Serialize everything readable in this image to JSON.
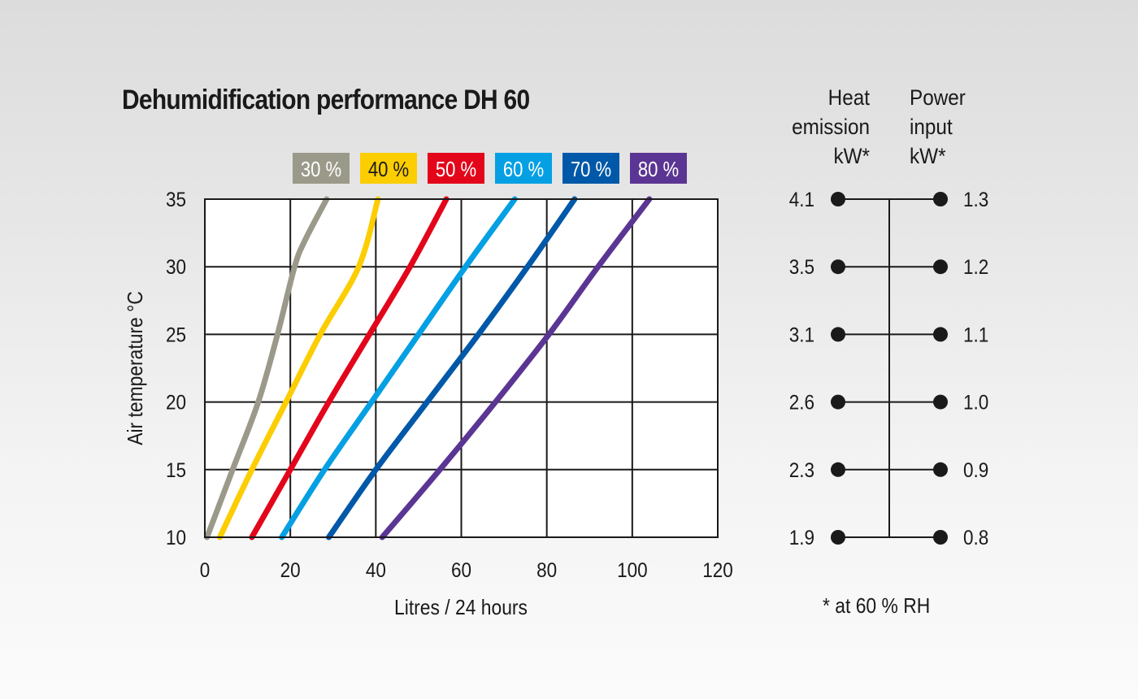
{
  "title": "Dehumidification performance DH 60",
  "chart_data": {
    "type": "line",
    "title": "Dehumidification performance DH 60",
    "xlabel": "Litres / 24 hours",
    "ylabel": "Air temperature °C",
    "xlim": [
      0,
      120
    ],
    "ylim": [
      10,
      35
    ],
    "xticks": [
      "0",
      "20",
      "40",
      "60",
      "80",
      "100",
      "120"
    ],
    "yticks": [
      "10",
      "15",
      "20",
      "25",
      "30",
      "35"
    ],
    "grid": true,
    "legend_position": "top",
    "series": [
      {
        "name": "30 %",
        "color": "#9b9a8a",
        "text_color": "#ffffff",
        "points": [
          [
            0.5,
            10
          ],
          [
            6.5,
            15
          ],
          [
            12.5,
            20
          ],
          [
            17,
            25
          ],
          [
            21,
            30
          ],
          [
            23.5,
            32
          ],
          [
            28.5,
            35
          ]
        ]
      },
      {
        "name": "40 %",
        "color": "#fccd00",
        "text_color": "#1a1a1a",
        "points": [
          [
            3.5,
            10
          ],
          [
            11,
            15
          ],
          [
            19,
            20
          ],
          [
            27,
            25
          ],
          [
            36,
            30
          ],
          [
            40.5,
            35
          ]
        ]
      },
      {
        "name": "50 %",
        "color": "#e3061b",
        "text_color": "#ffffff",
        "points": [
          [
            11,
            10
          ],
          [
            20,
            15
          ],
          [
            29,
            20
          ],
          [
            38.5,
            25
          ],
          [
            48,
            30
          ],
          [
            56.5,
            35
          ]
        ]
      },
      {
        "name": "60 %",
        "color": "#05a0e3",
        "text_color": "#ffffff",
        "points": [
          [
            18,
            10
          ],
          [
            28,
            15
          ],
          [
            39,
            20
          ],
          [
            50,
            25
          ],
          [
            61,
            30
          ],
          [
            72.5,
            35
          ]
        ]
      },
      {
        "name": "70 %",
        "color": "#0058a8",
        "text_color": "#ffffff",
        "points": [
          [
            29,
            10
          ],
          [
            40,
            15
          ],
          [
            52,
            20
          ],
          [
            64,
            25
          ],
          [
            75.5,
            30
          ],
          [
            86.5,
            35
          ]
        ]
      },
      {
        "name": "80 %",
        "color": "#5b3593",
        "text_color": "#ffffff",
        "points": [
          [
            41.5,
            10
          ],
          [
            55,
            15
          ],
          [
            68,
            20
          ],
          [
            80.5,
            25
          ],
          [
            92,
            30
          ],
          [
            104,
            35
          ]
        ]
      }
    ]
  },
  "side_table": {
    "heat_header": [
      "Heat",
      "emission",
      "kW*"
    ],
    "power_header": [
      "Power",
      "input",
      "kW*"
    ],
    "rows": [
      {
        "temp": 35,
        "heat": "4.1",
        "power": "1.3"
      },
      {
        "temp": 30,
        "heat": "3.5",
        "power": "1.2"
      },
      {
        "temp": 25,
        "heat": "3.1",
        "power": "1.1"
      },
      {
        "temp": 20,
        "heat": "2.6",
        "power": "1.0"
      },
      {
        "temp": 15,
        "heat": "2.3",
        "power": "0.9"
      },
      {
        "temp": 10,
        "heat": "1.9",
        "power": "0.8"
      }
    ],
    "footnote": "* at 60 % RH"
  }
}
